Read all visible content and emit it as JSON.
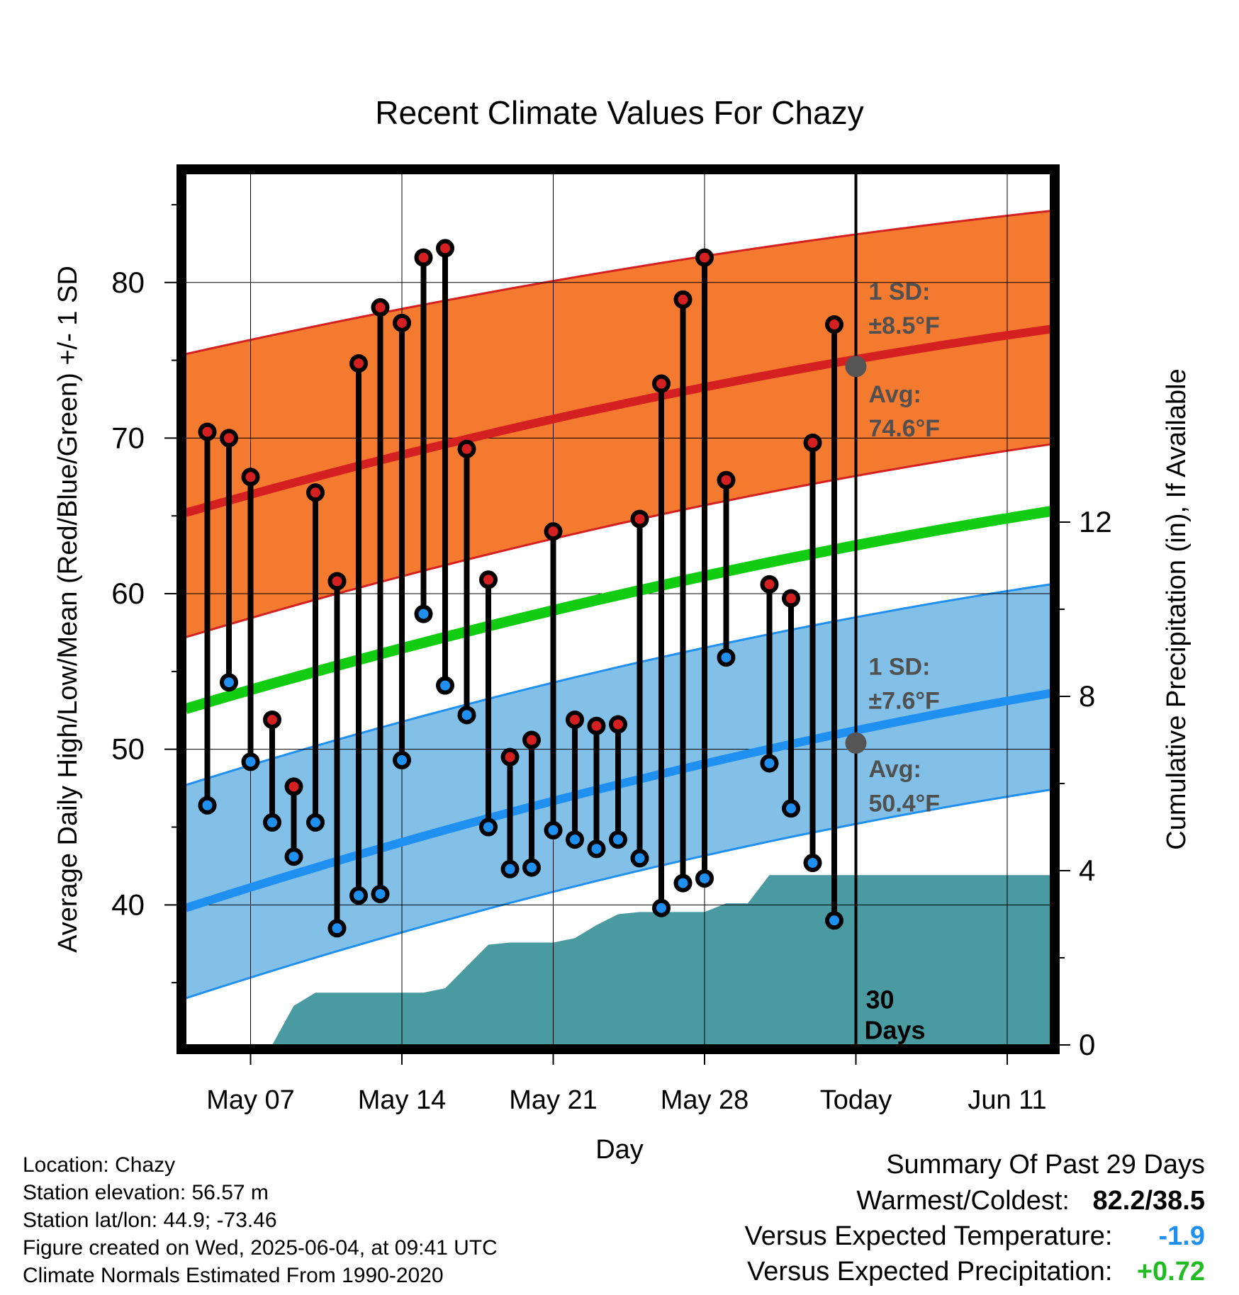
{
  "chart_data": {
    "type": "line",
    "title": "Recent Climate Values For Chazy",
    "xlabel": "Day",
    "ylabel_left": "Average Daily High/Low/Mean (Red/Blue/Green) +/- 1 SD",
    "ylabel_right": "Cumulative Precipitation (in), If Available",
    "x_range": [
      "2025-05-04",
      "2025-06-13"
    ],
    "ylim_left": [
      31,
      87
    ],
    "ylim_right": [
      0,
      20
    ],
    "grid": true,
    "x_ticks": [
      {
        "date": "2025-05-07",
        "label": "May 07"
      },
      {
        "date": "2025-05-14",
        "label": "May 14"
      },
      {
        "date": "2025-05-21",
        "label": "May 21"
      },
      {
        "date": "2025-05-28",
        "label": "May 28"
      },
      {
        "date": "2025-06-04",
        "label": "Today"
      },
      {
        "date": "2025-06-11",
        "label": "Jun 11"
      }
    ],
    "y_ticks_left": [
      "40",
      "50",
      "60",
      "70",
      "80"
    ],
    "y_ticks_right": [
      "0",
      "4",
      "8",
      "12"
    ],
    "normals": {
      "start_date": "2025-05-04",
      "end_date": "2025-06-13",
      "avg_high": [
        65.2,
        77.0
      ],
      "high_band": [
        [
          75.4,
          57.2
        ],
        [
          84.6,
          69.6
        ]
      ],
      "avg_mean": [
        52.6,
        65.3
      ],
      "avg_low": [
        39.8,
        53.6
      ],
      "low_band": [
        [
          47.7,
          34.0
        ],
        [
          60.6,
          47.4
        ]
      ]
    },
    "today_marker": {
      "date": "2025-06-04",
      "high_sd_label": "1 SD:",
      "high_sd_value": "±8.5°F",
      "high_avg_label": "Avg:",
      "high_avg_value": "74.6°F",
      "high_avg": 74.6,
      "low_sd_label": "1 SD:",
      "low_sd_value": "±7.6°F",
      "low_avg_label": "Avg:",
      "low_avg_value": "50.4°F",
      "low_avg": 50.4,
      "days_label_1": "30",
      "days_label_2": "Days"
    },
    "series": [
      {
        "name": "High",
        "color": "#d42020",
        "x": [
          "2025-05-05",
          "2025-05-06",
          "2025-05-07",
          "2025-05-08",
          "2025-05-09",
          "2025-05-10",
          "2025-05-11",
          "2025-05-12",
          "2025-05-13",
          "2025-05-14",
          "2025-05-15",
          "2025-05-16",
          "2025-05-17",
          "2025-05-18",
          "2025-05-19",
          "2025-05-20",
          "2025-05-21",
          "2025-05-22",
          "2025-05-23",
          "2025-05-24",
          "2025-05-25",
          "2025-05-26",
          "2025-05-27",
          "2025-05-28",
          "2025-05-29",
          "2025-05-31",
          "2025-06-01",
          "2025-06-02",
          "2025-06-03"
        ],
        "values": [
          70.4,
          70.0,
          67.5,
          51.9,
          47.6,
          66.5,
          60.8,
          74.8,
          78.4,
          77.4,
          81.6,
          82.2,
          69.3,
          60.9,
          49.5,
          50.6,
          64.0,
          51.9,
          51.5,
          51.6,
          64.8,
          73.5,
          78.9,
          81.6,
          67.3,
          60.6,
          59.7,
          69.7,
          77.3
        ]
      },
      {
        "name": "Low",
        "color": "#2090f0",
        "x": [
          "2025-05-05",
          "2025-05-06",
          "2025-05-07",
          "2025-05-08",
          "2025-05-09",
          "2025-05-10",
          "2025-05-11",
          "2025-05-12",
          "2025-05-13",
          "2025-05-14",
          "2025-05-15",
          "2025-05-16",
          "2025-05-17",
          "2025-05-18",
          "2025-05-19",
          "2025-05-20",
          "2025-05-21",
          "2025-05-22",
          "2025-05-23",
          "2025-05-24",
          "2025-05-25",
          "2025-05-26",
          "2025-05-27",
          "2025-05-28",
          "2025-05-29",
          "2025-05-31",
          "2025-06-01",
          "2025-06-02",
          "2025-06-03"
        ],
        "values": [
          46.4,
          54.3,
          49.2,
          45.3,
          43.1,
          45.3,
          38.5,
          40.6,
          40.7,
          49.3,
          58.7,
          54.1,
          52.2,
          45.0,
          42.3,
          42.4,
          44.8,
          44.2,
          43.6,
          44.2,
          43.0,
          39.8,
          41.4,
          41.7,
          55.9,
          49.1,
          46.2,
          42.7,
          39.0
        ]
      },
      {
        "name": "Cumulative Precipitation",
        "color": "#4a9aa2",
        "x": [
          "2025-05-08",
          "2025-05-09",
          "2025-05-10",
          "2025-05-11",
          "2025-05-12",
          "2025-05-13",
          "2025-05-14",
          "2025-05-15",
          "2025-05-16",
          "2025-05-17",
          "2025-05-18",
          "2025-05-19",
          "2025-05-20",
          "2025-05-21",
          "2025-05-22",
          "2025-05-23",
          "2025-05-24",
          "2025-05-25",
          "2025-05-26",
          "2025-05-27",
          "2025-05-28",
          "2025-05-29",
          "2025-05-30",
          "2025-05-31",
          "2025-06-01",
          "2025-06-13"
        ],
        "values": [
          0.0,
          0.9,
          1.2,
          1.2,
          1.2,
          1.2,
          1.2,
          1.2,
          1.3,
          1.8,
          2.3,
          2.35,
          2.35,
          2.35,
          2.45,
          2.75,
          3.0,
          3.05,
          3.05,
          3.05,
          3.05,
          3.25,
          3.25,
          3.9,
          3.9,
          3.9
        ]
      }
    ]
  },
  "info": {
    "location": "Location: Chazy",
    "elevation": "Station elevation: 56.57 m",
    "latlon": "Station lat/lon: 44.9; -73.46",
    "created": "Figure created on Wed, 2025-06-04, at 09:41 UTC",
    "normals_period": "Climate Normals Estimated From 1990-2020"
  },
  "summary": {
    "title": "Summary Of Past 29 Days",
    "warmest_label": "Warmest/Coldest:",
    "warmest_value": "82.2/38.5",
    "temp_label": "Versus Expected Temperature:",
    "temp_value": "-1.9",
    "temp_color": "#2090f0",
    "precip_label": "Versus Expected Precipitation:",
    "precip_value": "+0.72",
    "precip_color": "#22bb22"
  },
  "colors": {
    "high_band": "#f47a30",
    "high_line": "#d42020",
    "mean_line": "#11cc11",
    "low_band": "#82c0e8",
    "low_line": "#2090f0",
    "precip": "#4a9aa2",
    "today_text": "#505050"
  }
}
